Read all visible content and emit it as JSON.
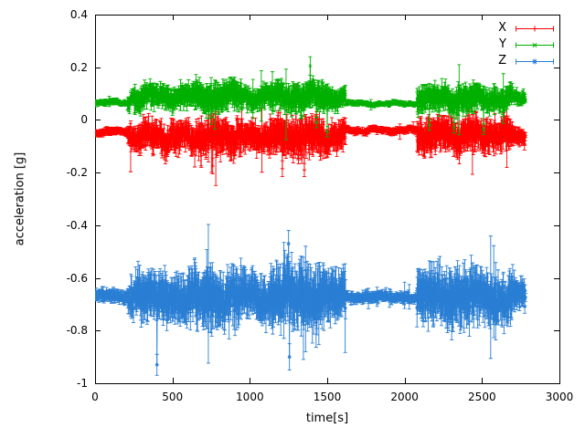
{
  "figure": {
    "background": "#ffffff",
    "axis_color": "#000000"
  },
  "chart_data": {
    "type": "line",
    "title": "",
    "xlabel": "time[s]",
    "ylabel": "acceleration [g]",
    "xlim": [
      0,
      3000
    ],
    "ylim": [
      -1,
      0.4
    ],
    "xticks": [
      0,
      500,
      1000,
      1500,
      2000,
      2500,
      3000
    ],
    "yticks": [
      -1,
      -0.8,
      -0.6,
      -0.4,
      -0.2,
      0,
      0.2,
      0.4
    ],
    "grid": false,
    "legend_position": "top-right-inside",
    "style": "points-with-yerrorbars",
    "samples": {
      "t0": 0,
      "t1": 2780,
      "dt": 2
    },
    "activity": [
      {
        "t0": 0,
        "t1": 210,
        "amp": 0.25
      },
      {
        "t0": 210,
        "t1": 260,
        "amp": 0.7
      },
      {
        "t0": 260,
        "t1": 640,
        "amp": 1.0
      },
      {
        "t0": 640,
        "t1": 950,
        "amp": 1.25
      },
      {
        "t0": 950,
        "t1": 1130,
        "amp": 0.95
      },
      {
        "t0": 1130,
        "t1": 1480,
        "amp": 1.3
      },
      {
        "t0": 1480,
        "t1": 1620,
        "amp": 1.0
      },
      {
        "t0": 1620,
        "t1": 2080,
        "amp": 0.22
      },
      {
        "t0": 2080,
        "t1": 2180,
        "amp": 1.1
      },
      {
        "t0": 2180,
        "t1": 2480,
        "amp": 1.2
      },
      {
        "t0": 2480,
        "t1": 2700,
        "amp": 1.05
      },
      {
        "t0": 2700,
        "t1": 2780,
        "amp": 0.6
      }
    ],
    "series": [
      {
        "name": "X",
        "color": "#ff0000",
        "marker": "plus",
        "baseline": -0.05,
        "noise": 0.03,
        "err": 0.035,
        "wander": {
          "amp": 0.013,
          "period": 210
        },
        "mean_segments": [
          {
            "t0": 0,
            "t1": 230,
            "mean": -0.045
          },
          {
            "t0": 230,
            "t1": 1620,
            "mean": -0.065
          },
          {
            "t0": 1620,
            "t1": 2080,
            "mean": -0.04
          },
          {
            "t0": 2080,
            "t1": 2780,
            "mean": -0.055
          }
        ],
        "spikes": [
          {
            "t": 1298,
            "y": 0.115,
            "err": 0.02
          },
          {
            "t": 1210,
            "y": -0.185,
            "err": 0.03
          },
          {
            "t": 1352,
            "y": -0.19,
            "err": 0.025
          },
          {
            "t": 760,
            "y": -0.175,
            "err": 0.03
          }
        ]
      },
      {
        "name": "Y",
        "color": "#00b000",
        "marker": "cross",
        "baseline": 0.07,
        "noise": 0.02,
        "err": 0.028,
        "wander": {
          "amp": 0.01,
          "period": 260
        },
        "mean_segments": [
          {
            "t0": 0,
            "t1": 230,
            "mean": 0.065
          },
          {
            "t0": 230,
            "t1": 1620,
            "mean": 0.088
          },
          {
            "t0": 1620,
            "t1": 2080,
            "mean": 0.062
          },
          {
            "t0": 2080,
            "t1": 2780,
            "mean": 0.08
          }
        ],
        "spikes": [
          {
            "t": 1390,
            "y": 0.205,
            "err": 0.035
          },
          {
            "t": 1430,
            "y": -0.01,
            "err": 0.02
          },
          {
            "t": 1500,
            "y": -0.045,
            "err": 0.02
          },
          {
            "t": 2160,
            "y": -0.02,
            "err": 0.02
          },
          {
            "t": 2320,
            "y": -0.03,
            "err": 0.02
          },
          {
            "t": 2510,
            "y": -0.035,
            "err": 0.02
          }
        ]
      },
      {
        "name": "Z",
        "color": "#2a7fd4",
        "marker": "asterisk",
        "baseline": -0.672,
        "noise": 0.05,
        "err": 0.055,
        "wander": {
          "amp": 0.011,
          "period": 300
        },
        "mean_segments": [
          {
            "t0": 0,
            "t1": 230,
            "mean": -0.668
          },
          {
            "t0": 230,
            "t1": 2780,
            "mean": -0.672
          }
        ],
        "spikes": [
          {
            "t": 400,
            "y": -0.93,
            "err": 0.04
          },
          {
            "t": 1244,
            "y": -0.55,
            "err": 0.04
          },
          {
            "t": 1250,
            "y": -0.47,
            "err": 0.05
          },
          {
            "t": 1256,
            "y": -0.9,
            "err": 0.05
          }
        ]
      }
    ]
  }
}
